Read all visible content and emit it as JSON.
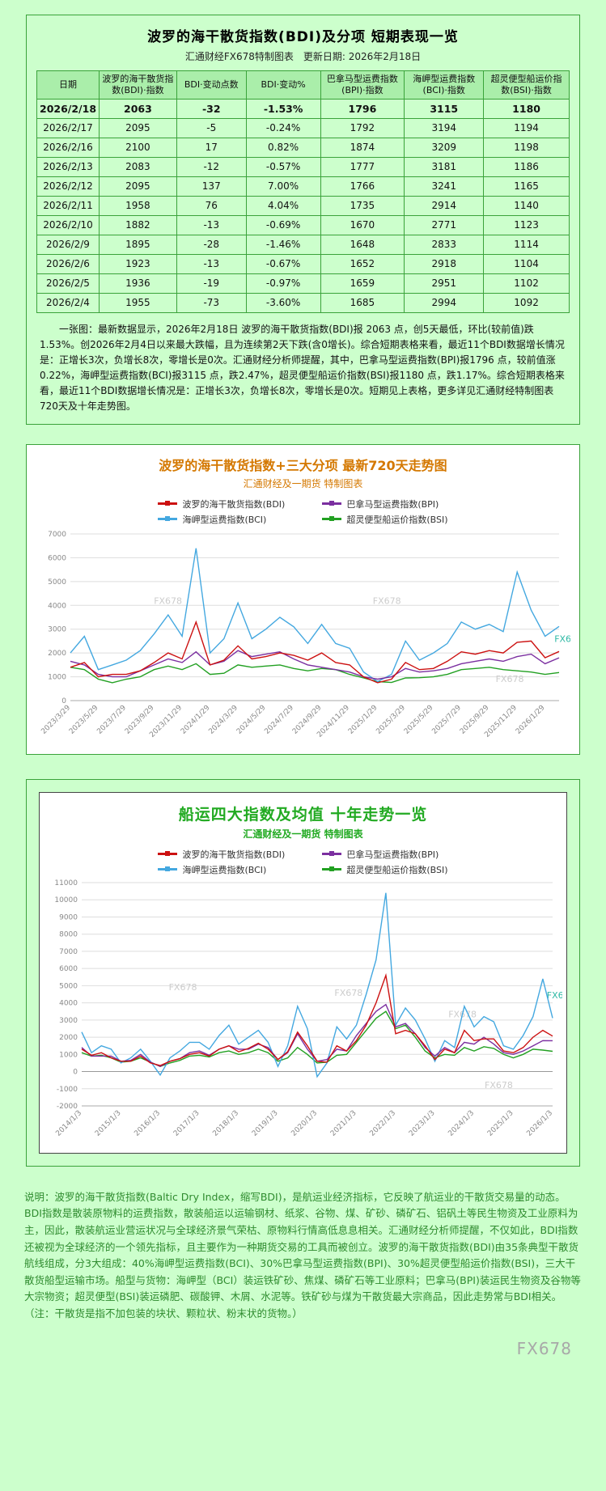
{
  "page": {
    "background": "#ccffcc",
    "watermark_text": "FX678",
    "footer_note": "说明：波罗的海干散货指数(Baltic Dry Index，缩写BDI)，是航运业经济指标，它反映了航运业的干散货交易量的动态。BDI指数是散装原物料的运费指数，散装船运以运输钢材、纸浆、谷物、煤、矿砂、磷矿石、铝矾土等民生物资及工业原料为主，因此，散装航运业营运状况与全球经济景气荣枯、原物料行情高低息息相关。汇通财经分析师提醒，不仅如此，BDI指数还被视为全球经济的一个领先指标，且主要作为一种期货交易的工具而被创立。波罗的海干散货指数(BDI)由35条典型干散货航线组成，分3大组成：40%海岬型运费指数(BCI)、30%巴拿马型运费指数(BPI)、30%超灵便型船运价指数(BSI)，三大干散货船型运输市场。船型与货物：海岬型（BCI）装运铁矿砂、焦煤、磷矿石等工业原料；巴拿马(BPI)装运民生物资及谷物等大宗物资；超灵便型(BSI)装运磷肥、碳酸钾、木屑、水泥等。铁矿砂与煤为干散货最大宗商品，因此走势常与BDI相关。（注：干散货是指不加包装的块状、颗粒状、粉末状的货物。）"
  },
  "table_section": {
    "title": "波罗的海干散货指数(BDI)及分项 短期表现一览",
    "subtitle": "汇通财经FX678特制图表　更新日期: 2026年2月18日",
    "columns": [
      "日期",
      "波罗的海干散货指数(BDI)·指数",
      "BDI·变动点数",
      "BDI·变动%",
      "巴拿马型运费指数(BPI)·指数",
      "海岬型运费指数(BCI)·指数",
      "超灵便型船运价指数(BSI)·指数"
    ],
    "rows": [
      [
        "2026/2/18",
        "2063",
        "-32",
        "-1.53%",
        "1796",
        "3115",
        "1180"
      ],
      [
        "2026/2/17",
        "2095",
        "-5",
        "-0.24%",
        "1792",
        "3194",
        "1194"
      ],
      [
        "2026/2/16",
        "2100",
        "17",
        "0.82%",
        "1874",
        "3209",
        "1198"
      ],
      [
        "2026/2/13",
        "2083",
        "-12",
        "-0.57%",
        "1777",
        "3181",
        "1186"
      ],
      [
        "2026/2/12",
        "2095",
        "137",
        "7.00%",
        "1766",
        "3241",
        "1165"
      ],
      [
        "2026/2/11",
        "1958",
        "76",
        "4.04%",
        "1735",
        "2914",
        "1140"
      ],
      [
        "2026/2/10",
        "1882",
        "-13",
        "-0.69%",
        "1670",
        "2771",
        "1123"
      ],
      [
        "2026/2/9",
        "1895",
        "-28",
        "-1.46%",
        "1648",
        "2833",
        "1114"
      ],
      [
        "2026/2/6",
        "1923",
        "-13",
        "-0.67%",
        "1652",
        "2918",
        "1104"
      ],
      [
        "2026/2/5",
        "1936",
        "-19",
        "-0.97%",
        "1659",
        "2951",
        "1102"
      ],
      [
        "2026/2/4",
        "1955",
        "-73",
        "-3.60%",
        "1685",
        "2994",
        "1092"
      ]
    ],
    "highlight_row": 0,
    "note": "一张图：最新数据显示，2026年2月18日 波罗的海干散货指数(BDI)报 2063 点，创5天最低，环比(较前值)跌1.53%。创2026年2月4日以来最大跌幅，且为连续第2天下跌(含0增长)。综合短期表格来看，最近11个BDI数据增长情况是：正增长3次，负增长8次，零增长是0次。汇通财经分析师提醒，其中，巴拿马型运费指数(BPI)报1796 点，较前值涨0.22%，海岬型运费指数(BCI)报3115 点，跌2.47%，超灵便型船运价指数(BSI)报1180 点，跌1.17%。综合短期表格来看，最近11个BDI数据增长情况是：正增长3次，负增长8次，零增长是0次。短期见上表格，更多详见汇通财经特制图表720天及十年走势图。"
  },
  "chart_data": [
    {
      "type": "line",
      "title": "波罗的海干散货指数+三大分项  最新720天走势图",
      "subtitle": "汇通财经及一期货 特制图表",
      "xlabel": "",
      "ylabel": "",
      "ylim": [
        0,
        7000
      ],
      "ytick": 1000,
      "grid": true,
      "legend_position": "top",
      "xtick_labels": [
        "2023/3/29",
        "2023/5/29",
        "2023/7/29",
        "2023/9/29",
        "2023/11/29",
        "2024/1/29",
        "2024/3/29",
        "2024/5/29",
        "2024/7/29",
        "2024/9/29",
        "2024/11/29",
        "2025/1/29",
        "2025/3/29",
        "2025/5/29",
        "2025/7/29",
        "2025/9/29",
        "2025/11/29",
        "2026/1/29"
      ],
      "series": [
        {
          "id": "bdi",
          "name": "波罗的海干散货指数(BDI)",
          "color": "#cc1111",
          "values": [
            1400,
            1600,
            1000,
            1100,
            1100,
            1250,
            1600,
            2000,
            1750,
            3300,
            1500,
            1700,
            2300,
            1750,
            1850,
            2000,
            1900,
            1700,
            2000,
            1600,
            1500,
            1000,
            750,
            900,
            1600,
            1300,
            1350,
            1650,
            2050,
            1950,
            2100,
            2000,
            2450,
            2500,
            1800,
            2063
          ]
        },
        {
          "id": "bpi",
          "name": "巴拿马型运费指数(BPI)",
          "color": "#7b2fa0",
          "values": [
            1650,
            1500,
            1100,
            1000,
            1000,
            1250,
            1500,
            1750,
            1600,
            2050,
            1500,
            1650,
            2100,
            1850,
            1950,
            2050,
            1750,
            1500,
            1400,
            1300,
            1200,
            1000,
            900,
            1000,
            1350,
            1200,
            1250,
            1350,
            1550,
            1650,
            1750,
            1650,
            1850,
            1950,
            1550,
            1796
          ]
        },
        {
          "id": "bci",
          "name": "海岬型运费指数(BCI)",
          "color": "#44a8e0",
          "values": [
            2000,
            2700,
            1300,
            1500,
            1700,
            2100,
            2800,
            3600,
            2700,
            6400,
            2000,
            2600,
            4100,
            2600,
            3000,
            3500,
            3100,
            2400,
            3200,
            2400,
            2200,
            1200,
            800,
            1100,
            2500,
            1700,
            2000,
            2400,
            3300,
            3000,
            3200,
            2900,
            5400,
            3800,
            2700,
            3115
          ]
        },
        {
          "id": "bsi",
          "name": "超灵便型船运价指数(BSI)",
          "color": "#22a022",
          "values": [
            1400,
            1300,
            900,
            750,
            900,
            1000,
            1300,
            1450,
            1300,
            1550,
            1100,
            1150,
            1500,
            1400,
            1450,
            1500,
            1350,
            1250,
            1350,
            1300,
            1100,
            950,
            800,
            760,
            950,
            960,
            1000,
            1100,
            1300,
            1350,
            1400,
            1300,
            1250,
            1200,
            1100,
            1180
          ]
        }
      ]
    },
    {
      "type": "line",
      "title": "船运四大指数及均值 十年走势一览",
      "subtitle": "汇通财经及一期货 特制图表",
      "xlabel": "",
      "ylabel": "",
      "ylim": [
        -2000,
        11000
      ],
      "ytick": 1000,
      "grid": true,
      "legend_position": "top",
      "xtick_labels": [
        "2014/1/3",
        "2015/1/3",
        "2016/1/3",
        "2017/1/3",
        "2018/1/3",
        "2019/1/3",
        "2020/1/3",
        "2021/1/3",
        "2022/1/3",
        "2023/1/3",
        "2024/1/3",
        "2025/1/3",
        "2026/1/3"
      ],
      "series": [
        {
          "id": "bdi",
          "name": "波罗的海干散货指数(BDI)",
          "color": "#cc1111",
          "values": [
            1300,
            950,
            1100,
            800,
            600,
            600,
            900,
            500,
            350,
            600,
            750,
            1000,
            1100,
            900,
            1300,
            1500,
            1150,
            1350,
            1650,
            1300,
            700,
            1150,
            2300,
            1500,
            600,
            550,
            1500,
            1200,
            1800,
            2700,
            4000,
            5600,
            2200,
            2400,
            2200,
            1500,
            700,
            1300,
            1100,
            2400,
            1800,
            1900,
            1900,
            1200,
            1100,
            1400,
            2000,
            2400,
            2063
          ]
        },
        {
          "id": "bpi",
          "name": "巴拿马型运费指数(BPI)",
          "color": "#7b2fa0",
          "values": [
            1400,
            900,
            900,
            900,
            600,
            650,
            1000,
            550,
            300,
            600,
            750,
            1100,
            1200,
            950,
            1300,
            1500,
            1300,
            1300,
            1600,
            1400,
            700,
            1100,
            2200,
            1300,
            600,
            700,
            1300,
            1200,
            2100,
            2800,
            3500,
            3900,
            2600,
            2800,
            2200,
            1400,
            900,
            1400,
            1100,
            1700,
            1600,
            2000,
            1600,
            1100,
            1000,
            1200,
            1500,
            1800,
            1796
          ]
        },
        {
          "id": "bci",
          "name": "海岬型运费指数(BCI)",
          "color": "#44a8e0",
          "values": [
            2300,
            1100,
            1500,
            1300,
            500,
            800,
            1300,
            600,
            -200,
            800,
            1200,
            1700,
            1700,
            1300,
            2100,
            2700,
            1600,
            2000,
            2400,
            1700,
            300,
            1500,
            3800,
            2500,
            -300,
            500,
            2600,
            1900,
            2700,
            4500,
            6500,
            10400,
            2700,
            3700,
            3000,
            1900,
            600,
            1800,
            1400,
            3800,
            2600,
            3200,
            2900,
            1500,
            1300,
            2100,
            3200,
            5400,
            3115
          ]
        },
        {
          "id": "bsi",
          "name": "超灵便型船运价指数(BSI)",
          "color": "#22a022",
          "values": [
            1100,
            900,
            950,
            800,
            550,
            600,
            800,
            550,
            300,
            500,
            650,
            900,
            950,
            850,
            1100,
            1200,
            1000,
            1100,
            1300,
            1100,
            600,
            800,
            1400,
            1000,
            500,
            550,
            950,
            1000,
            1700,
            2400,
            3100,
            3500,
            2500,
            2700,
            2000,
            1200,
            800,
            1000,
            950,
            1400,
            1200,
            1450,
            1350,
            1000,
            800,
            1000,
            1300,
            1250,
            1180
          ]
        }
      ]
    }
  ]
}
